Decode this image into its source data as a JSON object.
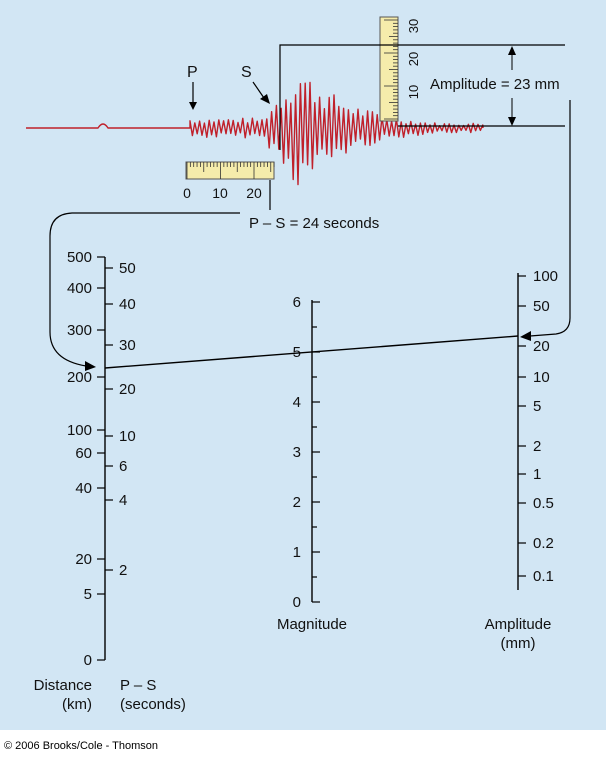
{
  "seismogram": {
    "p_label": "P",
    "s_label": "S",
    "trace_color": "#c0202a",
    "ruler_fill": "#f5ecab"
  },
  "vertical_ruler": {
    "ticks": [
      "10",
      "20",
      "30"
    ]
  },
  "horizontal_ruler": {
    "ticks": [
      "0",
      "10",
      "20"
    ]
  },
  "amplitude_annotation": "Amplitude = 23 mm",
  "ps_annotation": "P – S = 24 seconds",
  "scales": {
    "distance": {
      "label_line1": "Distance",
      "label_line2": "(km)",
      "ticks": [
        "500",
        "400",
        "300",
        "200",
        "100",
        "60",
        "40",
        "20",
        "5",
        "0"
      ]
    },
    "ps": {
      "label_line1": "P – S",
      "label_line2": "(seconds)",
      "ticks": [
        "50",
        "40",
        "30",
        "20",
        "10",
        "6",
        "4",
        "2"
      ]
    },
    "magnitude": {
      "label": "Magnitude",
      "ticks": [
        "6",
        "5",
        "4",
        "3",
        "2",
        "1",
        "0"
      ]
    },
    "amplitude": {
      "label_line1": "Amplitude",
      "label_line2": "(mm)",
      "ticks": [
        "100",
        "50",
        "20",
        "10",
        "5",
        "2",
        "1",
        "0.5",
        "0.2",
        "0.1"
      ]
    }
  },
  "copyright": "© 2006 Brooks/Cole - Thomson"
}
